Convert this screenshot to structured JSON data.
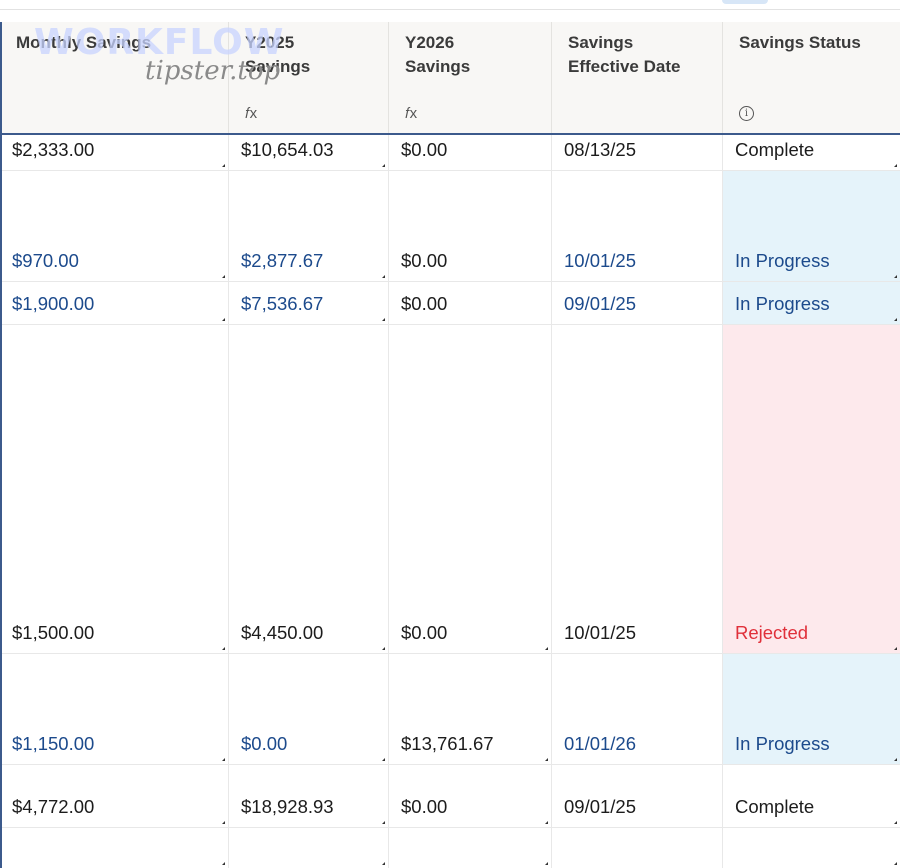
{
  "watermark": {
    "brand": "WORKFLOW",
    "site": "tipster.top"
  },
  "columns": [
    {
      "label": "Monthly Savings",
      "icon": ""
    },
    {
      "label": "Y2025\nSavings",
      "icon": "formula-icon"
    },
    {
      "label": "Y2026\nSavings",
      "icon": "formula-icon"
    },
    {
      "label": "Savings\nEffective Date",
      "icon": ""
    },
    {
      "label": "Savings Status",
      "icon": "info-icon"
    }
  ],
  "icons": {
    "formula": "𝑓x",
    "info": "i"
  },
  "rows": [
    {
      "monthly": "$2,333.00",
      "y2025": "$10,654.03",
      "y2026": "$0.00",
      "date": "08/13/25",
      "status": "Complete"
    },
    {
      "monthly": "$970.00",
      "y2025": "$2,877.67",
      "y2026": "$0.00",
      "date": "10/01/25",
      "status": "In Progress"
    },
    {
      "monthly": "$1,900.00",
      "y2025": "$7,536.67",
      "y2026": "$0.00",
      "date": "09/01/25",
      "status": "In Progress"
    },
    {
      "monthly": "$1,500.00",
      "y2025": "$4,450.00",
      "y2026": "$0.00",
      "date": "10/01/25",
      "status": "Rejected"
    },
    {
      "monthly": "$1,150.00",
      "y2025": "$0.00",
      "y2026": "$13,761.67",
      "date": "01/01/26",
      "status": "In Progress"
    },
    {
      "monthly": "$4,772.00",
      "y2025": "$18,928.93",
      "y2026": "$0.00",
      "date": "09/01/25",
      "status": "Complete"
    },
    {
      "monthly": "",
      "y2025": "",
      "y2026": "",
      "date": "",
      "status": ""
    }
  ],
  "colors": {
    "header_bg": "#f8f7f5",
    "header_border": "#3c5a8c",
    "in_progress_text": "#1c4a8c",
    "in_progress_bg": "#e5f3fa",
    "rejected_text": "#e0303a",
    "rejected_bg": "#fde9ec"
  }
}
